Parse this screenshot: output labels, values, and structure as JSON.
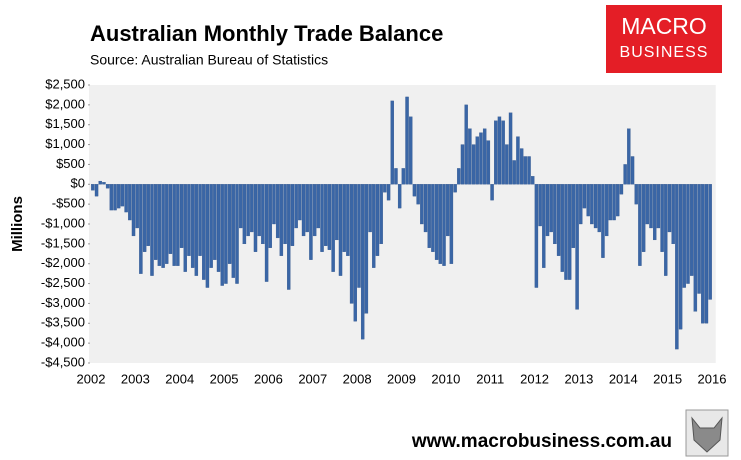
{
  "chart_data": {
    "type": "bar",
    "title": "Australian Monthly Trade Balance",
    "subtitle": "Source: Australian Bureau of Statistics",
    "y_label": "Millions",
    "color": "#3a66a6",
    "background": "#f0f0f0",
    "categories": [
      "2002",
      null,
      null,
      null,
      null,
      null,
      null,
      null,
      null,
      null,
      null,
      null,
      "2003",
      null,
      null,
      null,
      null,
      null,
      null,
      null,
      null,
      null,
      null,
      null,
      "2004",
      null,
      null,
      null,
      null,
      null,
      null,
      null,
      null,
      null,
      null,
      null,
      "2005",
      null,
      null,
      null,
      null,
      null,
      null,
      null,
      null,
      null,
      null,
      null,
      "2006",
      null,
      null,
      null,
      null,
      null,
      null,
      null,
      null,
      null,
      null,
      null,
      "2007",
      null,
      null,
      null,
      null,
      null,
      null,
      null,
      null,
      null,
      null,
      null,
      "2008",
      null,
      null,
      null,
      null,
      null,
      null,
      null,
      null,
      null,
      null,
      null,
      "2009",
      null,
      null,
      null,
      null,
      null,
      null,
      null,
      null,
      null,
      null,
      null,
      "2010",
      null,
      null,
      null,
      null,
      null,
      null,
      null,
      null,
      null,
      null,
      null,
      "2011",
      null,
      null,
      null,
      null,
      null,
      null,
      null,
      null,
      null,
      null,
      null,
      "2012",
      null,
      null,
      null,
      null,
      null,
      null,
      null,
      null,
      null,
      null,
      null,
      "2013",
      null,
      null,
      null,
      null,
      null,
      null,
      null,
      null,
      null,
      null,
      null,
      "2014",
      null,
      null,
      null,
      null,
      null,
      null,
      null,
      null,
      null,
      null,
      null,
      "2015",
      null,
      null,
      null,
      null,
      null,
      null,
      null,
      null,
      null,
      null,
      null,
      "2016"
    ],
    "values": [
      -150,
      -300,
      80,
      50,
      -100,
      -650,
      -650,
      -600,
      -550,
      -700,
      -900,
      -1300,
      -1100,
      -2250,
      -1700,
      -1550,
      -2300,
      -1900,
      -2050,
      -2100,
      -2000,
      -1750,
      -2050,
      -2050,
      -1600,
      -2200,
      -1800,
      -2100,
      -2300,
      -1800,
      -2400,
      -2600,
      -2100,
      -1900,
      -2200,
      -2550,
      -2500,
      -2000,
      -2350,
      -2500,
      -1100,
      -1500,
      -1300,
      -1200,
      -1700,
      -1300,
      -1500,
      -2450,
      -1600,
      -1000,
      -1350,
      -1800,
      -1500,
      -2650,
      -1550,
      -1100,
      -900,
      -1300,
      -1200,
      -1900,
      -1300,
      -1100,
      -1700,
      -1550,
      -1650,
      -2200,
      -1400,
      -2300,
      -1700,
      -1800,
      -3000,
      -3450,
      -2600,
      -3900,
      -3250,
      -1200,
      -2100,
      -1800,
      -1500,
      -200,
      -400,
      2100,
      400,
      -600,
      400,
      2200,
      1700,
      -300,
      -500,
      -1000,
      -1200,
      -1600,
      -1700,
      -1900,
      -2000,
      -2050,
      -1300,
      -2000,
      -200,
      400,
      1000,
      2000,
      1400,
      1000,
      1200,
      1300,
      1400,
      1100,
      -400,
      1600,
      1700,
      1600,
      1000,
      1800,
      600,
      1200,
      900,
      700,
      700,
      200,
      -2600,
      -1050,
      -2100,
      -1300,
      -1200,
      -1500,
      -1800,
      -2200,
      -2400,
      -2400,
      -1600,
      -3150,
      -1000,
      -600,
      -800,
      -1000,
      -1100,
      -1200,
      -1850,
      -1300,
      -900,
      -900,
      -800,
      -250,
      500,
      1400,
      700,
      -500,
      -2050,
      -1700,
      -1000,
      -1100,
      -1400,
      -1100,
      -1700,
      -2300,
      -1200,
      -1500,
      -4150,
      -3650,
      -2600,
      -2500,
      -2300,
      -3200,
      -2750,
      -3500,
      -3500,
      -2900,
      null
    ],
    "ylim": [
      -4500,
      2500
    ],
    "yticks": [
      {
        "value": 2500,
        "label": "$2,500"
      },
      {
        "value": 2000,
        "label": "$2,000"
      },
      {
        "value": 1500,
        "label": "$1,500"
      },
      {
        "value": 1000,
        "label": "$1,000"
      },
      {
        "value": 500,
        "label": "$500"
      },
      {
        "value": 0,
        "label": "$0"
      },
      {
        "value": -500,
        "label": "-$500"
      },
      {
        "value": -1000,
        "label": "-$1,000"
      },
      {
        "value": -1500,
        "label": "-$1,500"
      },
      {
        "value": -2000,
        "label": "-$2,000"
      },
      {
        "value": -2500,
        "label": "-$2,500"
      },
      {
        "value": -3000,
        "label": "-$3,000"
      },
      {
        "value": -3500,
        "label": "-$3,500"
      },
      {
        "value": -4000,
        "label": "-$4,000"
      },
      {
        "value": -4500,
        "label": "-$4,500"
      }
    ],
    "grid": false
  },
  "branding": {
    "logo_top": "MACRO",
    "logo_bottom": "BUSINESS",
    "url": "www.macrobusiness.com.au"
  }
}
